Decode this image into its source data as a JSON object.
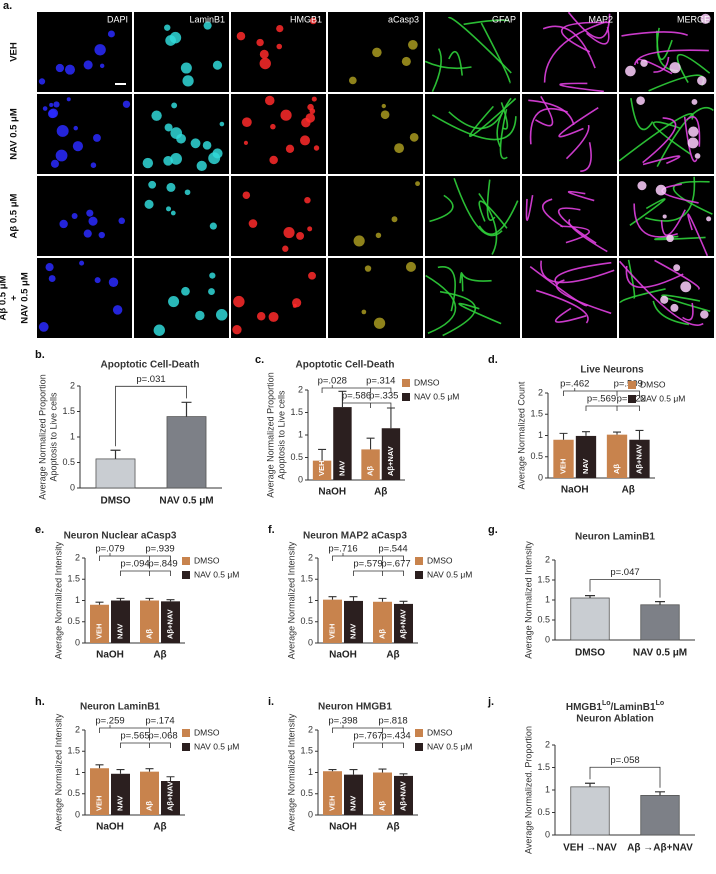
{
  "panel_a": {
    "label": "a.",
    "columns": [
      "DAPI",
      "LaminB1",
      "HMGB1",
      "aCasp3",
      "GFAP",
      "MAP2",
      "MERGE"
    ],
    "rows": [
      [
        "VEH"
      ],
      [
        "NAV 0.5 μM"
      ],
      [
        "Aβ 0.5 μM"
      ],
      [
        "Aβ 0.5 μM",
        "+",
        "NAV 0.5 μM"
      ]
    ]
  },
  "chart_data": [
    {
      "type": "bar",
      "panel": "b.",
      "title": [
        "Apoptotic Cell-Death"
      ],
      "ylabel": [
        "Average Normalized Proportion",
        "Apoptosis to Live cells"
      ],
      "categories": [
        "DMSO",
        "NAV 0.5 μM"
      ],
      "values": [
        0.57,
        1.4
      ],
      "errors": [
        0.17,
        0.28
      ],
      "colors": [
        "#c9cdd2",
        "#7d8087"
      ],
      "ylim": [
        0,
        2
      ],
      "yticks": [
        0,
        0.5,
        1,
        1.5,
        2
      ],
      "annotations": [
        "p=.031"
      ]
    },
    {
      "type": "grouped_bar",
      "panel": "c.",
      "title": [
        "Apoptotic Cell-Death"
      ],
      "ylabel": [
        "Average Normalized Proportion",
        "Apoptosis to Live cells"
      ],
      "categories": [
        "NaOH",
        "Aβ"
      ],
      "series": [
        {
          "name": "DMSO",
          "color": "#c8834d",
          "values": [
            0.43,
            0.68
          ],
          "errors": [
            0.25,
            0.25
          ],
          "bar_labels": [
            "VEH",
            "Aβ"
          ]
        },
        {
          "name": "NAV 0.5 μM",
          "color": "#2b1f1f",
          "values": [
            1.62,
            1.15
          ],
          "errors": [
            0.35,
            0.45
          ],
          "bar_labels": [
            "NAV",
            "Aβ+NAV"
          ]
        }
      ],
      "ylim": [
        0,
        2
      ],
      "yticks": [
        0,
        0.5,
        1,
        1.5,
        2
      ],
      "annotations": [
        "p=.028",
        "p=.314",
        "p=.586",
        "p=.335"
      ]
    },
    {
      "type": "grouped_bar",
      "panel": "d.",
      "title": [
        "Live Neurons"
      ],
      "ylabel": [
        "Average Normalized Count"
      ],
      "categories": [
        "NaOH",
        "Aβ"
      ],
      "series": [
        {
          "name": "DMSO",
          "color": "#c8834d",
          "values": [
            0.9,
            1.02
          ],
          "errors": [
            0.15,
            0.06
          ],
          "bar_labels": [
            "VEH",
            "Aβ"
          ]
        },
        {
          "name": "NAV 0.5 μM",
          "color": "#2b1f1f",
          "values": [
            0.99,
            0.9
          ],
          "errors": [
            0.1,
            0.22
          ],
          "bar_labels": [
            "NAV",
            "Aβ+NAV"
          ]
        }
      ],
      "ylim": [
        0,
        2
      ],
      "yticks": [
        0,
        0.5,
        1,
        1.5,
        2
      ],
      "annotations": [
        "p=.462",
        "p=.509",
        "p=.569",
        "p=.622"
      ]
    },
    {
      "type": "grouped_bar",
      "panel": "e.",
      "title": [
        "Neuron Nuclear aCasp3"
      ],
      "ylabel": [
        "Average Normalized Intensity"
      ],
      "categories": [
        "NaOH",
        "Aβ"
      ],
      "series": [
        {
          "name": "DMSO",
          "color": "#c8834d",
          "values": [
            0.9,
            1.0
          ],
          "errors": [
            0.06,
            0.05
          ],
          "bar_labels": [
            "VEH",
            "Aβ"
          ]
        },
        {
          "name": "NAV 0.5 μM",
          "color": "#2b1f1f",
          "values": [
            1.0,
            0.98
          ],
          "errors": [
            0.05,
            0.04
          ],
          "bar_labels": [
            "NAV",
            "Aβ+NAV"
          ]
        }
      ],
      "ylim": [
        0,
        2
      ],
      "yticks": [
        0,
        0.5,
        1,
        1.5,
        2
      ],
      "annotations": [
        "p=.079",
        "p=.939",
        "p=.094",
        "p=.849"
      ]
    },
    {
      "type": "grouped_bar",
      "panel": "f.",
      "title": [
        "Neuron MAP2 aCasp3"
      ],
      "ylabel": [
        "Average Normalized Intensity"
      ],
      "categories": [
        "NaOH",
        "Aβ"
      ],
      "series": [
        {
          "name": "DMSO",
          "color": "#c8834d",
          "values": [
            1.02,
            0.97
          ],
          "errors": [
            0.07,
            0.08
          ],
          "bar_labels": [
            "VEH",
            "Aβ"
          ]
        },
        {
          "name": "NAV 0.5 μM",
          "color": "#2b1f1f",
          "values": [
            0.99,
            0.92
          ],
          "errors": [
            0.1,
            0.06
          ],
          "bar_labels": [
            "NAV",
            "Aβ+NAV"
          ]
        }
      ],
      "ylim": [
        0,
        2
      ],
      "yticks": [
        0,
        0.5,
        1,
        1.5,
        2
      ],
      "annotations": [
        "p=.716",
        "p=.544",
        "p=.579",
        "p=.677"
      ]
    },
    {
      "type": "bar",
      "panel": "g.",
      "title": [
        "Neuron LaminB1"
      ],
      "ylabel": [
        "Average Normalized Intensity"
      ],
      "categories": [
        "DMSO",
        "NAV 0.5 μM"
      ],
      "values": [
        1.05,
        0.88
      ],
      "errors": [
        0.06,
        0.08
      ],
      "colors": [
        "#c9cdd2",
        "#7d8087"
      ],
      "ylim": [
        0,
        2
      ],
      "yticks": [
        0,
        0.5,
        1,
        1.5,
        2
      ],
      "annotations": [
        "p=.047"
      ]
    },
    {
      "type": "grouped_bar",
      "panel": "h.",
      "title": [
        "Neuron LaminB1"
      ],
      "ylabel": [
        "Average Normalized Intensity"
      ],
      "categories": [
        "NaOH",
        "Aβ"
      ],
      "series": [
        {
          "name": "DMSO",
          "color": "#c8834d",
          "values": [
            1.1,
            1.02
          ],
          "errors": [
            0.08,
            0.07
          ],
          "bar_labels": [
            "VEH",
            "Aβ"
          ]
        },
        {
          "name": "NAV 0.5 μM",
          "color": "#2b1f1f",
          "values": [
            0.97,
            0.8
          ],
          "errors": [
            0.1,
            0.1
          ],
          "bar_labels": [
            "NAV",
            "Aβ+NAV"
          ]
        }
      ],
      "ylim": [
        0,
        2
      ],
      "yticks": [
        0,
        0.5,
        1,
        1.5,
        2
      ],
      "annotations": [
        "p=.259",
        "p=.174",
        "p=.565",
        "p=.068"
      ]
    },
    {
      "type": "grouped_bar",
      "panel": "i.",
      "title": [
        "Neuron HMGB1"
      ],
      "ylabel": [
        "Average Normalized Intensity"
      ],
      "categories": [
        "NaOH",
        "Aβ"
      ],
      "series": [
        {
          "name": "DMSO",
          "color": "#c8834d",
          "values": [
            1.03,
            1.0
          ],
          "errors": [
            0.04,
            0.08
          ],
          "bar_labels": [
            "VEH",
            "Aβ"
          ]
        },
        {
          "name": "NAV 0.5 μM",
          "color": "#2b1f1f",
          "values": [
            0.95,
            0.92
          ],
          "errors": [
            0.12,
            0.05
          ],
          "bar_labels": [
            "NAV",
            "Aβ+NAV"
          ]
        }
      ],
      "ylim": [
        0,
        2
      ],
      "yticks": [
        0,
        0.5,
        1,
        1.5,
        2
      ],
      "annotations": [
        "p=.398",
        "p=.818",
        "p=.767",
        "p=.434"
      ]
    },
    {
      "type": "bar",
      "panel": "j.",
      "title": [
        [
          "HMGB1",
          {
            "sup": "Lo"
          },
          "/LaminB1",
          {
            "sup": "Lo"
          }
        ],
        "Neuron Ablation"
      ],
      "ylabel": [
        "Average Normalized. Proportion"
      ],
      "categories": [
        "VEH →NAV",
        "Aβ →Aβ+NAV"
      ],
      "values": [
        1.07,
        0.88
      ],
      "errors": [
        0.08,
        0.08
      ],
      "colors": [
        "#c9cdd2",
        "#7d8087"
      ],
      "ylim": [
        0,
        2
      ],
      "yticks": [
        0,
        0.5,
        1,
        1.5,
        2
      ],
      "annotations": [
        "p=.058"
      ]
    }
  ]
}
